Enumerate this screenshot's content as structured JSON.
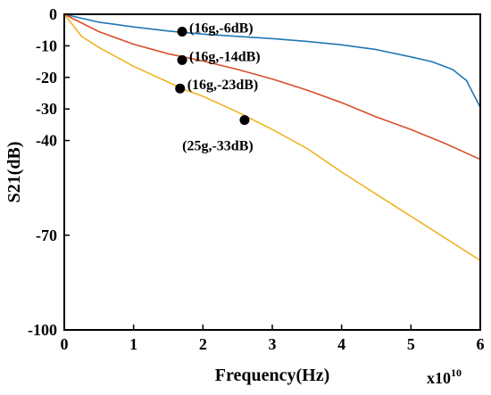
{
  "chart_data": {
    "type": "line",
    "xlabel": "Frequency(Hz)",
    "ylabel": "S21(dB)",
    "x_multiplier": {
      "base": "x10",
      "exponent": "10"
    },
    "xlim": [
      0,
      6
    ],
    "ylim": [
      -100,
      0
    ],
    "x_ticks": [
      0,
      1,
      2,
      3,
      4,
      5,
      6
    ],
    "y_ticks": [
      0,
      -10,
      -20,
      -30,
      -40,
      -70,
      -100
    ],
    "grid": false,
    "legend": "none",
    "series": [
      {
        "color": "#1f77b4",
        "x": [
          0,
          0.5,
          1,
          1.5,
          2,
          2.5,
          3,
          3.5,
          4,
          4.5,
          5,
          5.3,
          5.6,
          5.8,
          6
        ],
        "y": [
          0,
          -2.5,
          -4,
          -5.3,
          -6.3,
          -7,
          -7.7,
          -8.6,
          -9.7,
          -11.2,
          -13.5,
          -15,
          -17.5,
          -21,
          -29.5
        ]
      },
      {
        "color": "#d94f2b",
        "x": [
          0,
          0.5,
          1,
          1.5,
          2,
          2.5,
          3,
          3.5,
          4,
          4.5,
          5,
          5.5,
          6
        ],
        "y": [
          0,
          -5.5,
          -9.5,
          -12.5,
          -14.8,
          -17.5,
          -20.5,
          -24,
          -28,
          -32.5,
          -36.5,
          -41,
          -46
        ]
      },
      {
        "color": "#f0b323",
        "x": [
          0,
          0.25,
          0.5,
          0.75,
          1,
          1.25,
          1.5,
          1.75,
          2,
          2.5,
          3,
          3.5,
          4,
          4.5,
          5,
          5.5,
          6
        ],
        "y": [
          0,
          -7,
          -10.5,
          -13.5,
          -16.5,
          -19,
          -21.5,
          -24,
          -26,
          -31,
          -36.5,
          -42.5,
          -50,
          -57,
          -64,
          -71,
          -78
        ]
      }
    ],
    "annotations": [
      {
        "x": 1.7,
        "y": -5.5,
        "text": "(16g,-6dB)",
        "label_pos": "right"
      },
      {
        "x": 1.7,
        "y": -14.5,
        "text": "(16g,-14dB)",
        "label_pos": "right"
      },
      {
        "x": 1.67,
        "y": -23.5,
        "text": "(16g,-23dB)",
        "label_pos": "right"
      },
      {
        "x": 2.6,
        "y": -33.5,
        "text": "(25g,-33dB)",
        "label_pos": "below"
      }
    ]
  }
}
